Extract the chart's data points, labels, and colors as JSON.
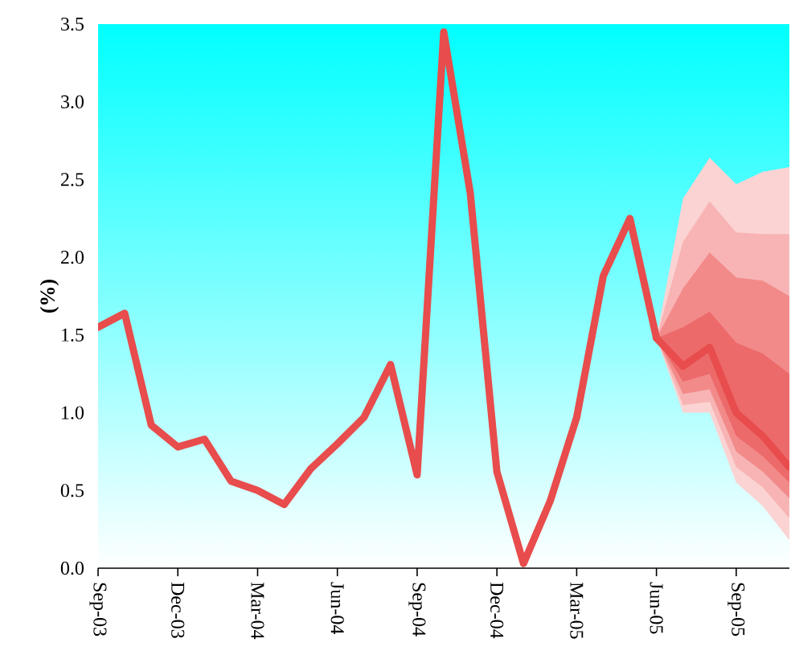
{
  "chart_data": {
    "type": "line",
    "ylabel": "(%)",
    "xlim": [
      "2003-09",
      "2005-11"
    ],
    "xticks": [
      {
        "value": "2003-09",
        "label": "Sep-03"
      },
      {
        "value": "2003-12",
        "label": "Dec-03"
      },
      {
        "value": "2004-03",
        "label": "Mar-04"
      },
      {
        "value": "2004-06",
        "label": "Jun-04"
      },
      {
        "value": "2004-09",
        "label": "Sep-04"
      },
      {
        "value": "2004-12",
        "label": "Dec-04"
      },
      {
        "value": "2005-03",
        "label": "Mar-05"
      },
      {
        "value": "2005-06",
        "label": "Jun-05"
      },
      {
        "value": "2005-09",
        "label": "Sep-05"
      }
    ],
    "ylim": [
      0,
      3.5
    ],
    "yticks": [
      {
        "value": 0,
        "label": "0.0"
      },
      0.5,
      {
        "value": 1,
        "label": "1.0"
      },
      1.5,
      {
        "value": 2,
        "label": "2.0"
      },
      2.5,
      {
        "value": 3,
        "label": "3.0"
      },
      3.5
    ],
    "grid": false,
    "legend": false,
    "marker": "none",
    "line_style": "solid",
    "series": [
      {
        "type": "area",
        "color": "#fbd3d3",
        "x": [
          "2005-06",
          "2005-07",
          "2005-08",
          "2005-09",
          "2005-10",
          "2005-11"
        ],
        "values": [
          null,
          null,
          null,
          null,
          null,
          null
        ],
        "lower": [
          1.48,
          1.0,
          1.0,
          0.55,
          0.4,
          0.18
        ],
        "upper": [
          1.48,
          2.38,
          2.64,
          2.47,
          2.55,
          2.58
        ]
      },
      {
        "type": "area",
        "color": "#f8b4b4",
        "x": [
          "2005-06",
          "2005-07",
          "2005-08",
          "2005-09",
          "2005-10",
          "2005-11"
        ],
        "values": [
          null,
          null,
          null,
          null,
          null,
          null
        ],
        "lower": [
          1.48,
          1.05,
          1.07,
          0.65,
          0.52,
          0.32
        ],
        "upper": [
          1.48,
          2.1,
          2.36,
          2.16,
          2.15,
          2.15
        ]
      },
      {
        "type": "area",
        "color": "#f28a8a",
        "x": [
          "2005-06",
          "2005-07",
          "2005-08",
          "2005-09",
          "2005-10",
          "2005-11"
        ],
        "values": [
          null,
          null,
          null,
          null,
          null,
          null
        ],
        "lower": [
          1.48,
          1.12,
          1.15,
          0.75,
          0.62,
          0.45
        ],
        "upper": [
          1.48,
          1.8,
          2.03,
          1.87,
          1.85,
          1.75
        ]
      },
      {
        "type": "area",
        "color": "#ed6a6a",
        "x": [
          "2005-06",
          "2005-07",
          "2005-08",
          "2005-09",
          "2005-10",
          "2005-11"
        ],
        "values": [
          null,
          null,
          null,
          null,
          null,
          null
        ],
        "lower": [
          1.48,
          1.2,
          1.25,
          0.85,
          0.72,
          0.55
        ],
        "upper": [
          1.48,
          1.55,
          1.65,
          1.45,
          1.38,
          1.25
        ]
      },
      {
        "color": "#e84c4c",
        "x": [
          "2005-06",
          "2005-07",
          "2005-08",
          "2005-09",
          "2005-10",
          "2005-11"
        ],
        "values": [
          1.48,
          1.3,
          1.42,
          1.0,
          0.85,
          0.65
        ]
      },
      {
        "color": "#e84c4c",
        "x": [
          "2003-09",
          "2003-10",
          "2003-11",
          "2003-12",
          "2004-01",
          "2004-02",
          "2004-03",
          "2004-04",
          "2004-05",
          "2004-06",
          "2004-07",
          "2004-08",
          "2004-09",
          "2004-10",
          "2004-11",
          "2004-12",
          "2005-01",
          "2005-02",
          "2005-03",
          "2005-04",
          "2005-05",
          "2005-06"
        ],
        "values": [
          1.55,
          1.64,
          0.92,
          0.78,
          0.83,
          0.56,
          0.5,
          0.41,
          0.64,
          0.8,
          0.97,
          1.31,
          0.6,
          3.45,
          2.41,
          0.62,
          0.03,
          0.43,
          0.97,
          1.88,
          2.25,
          1.48
        ]
      }
    ]
  }
}
